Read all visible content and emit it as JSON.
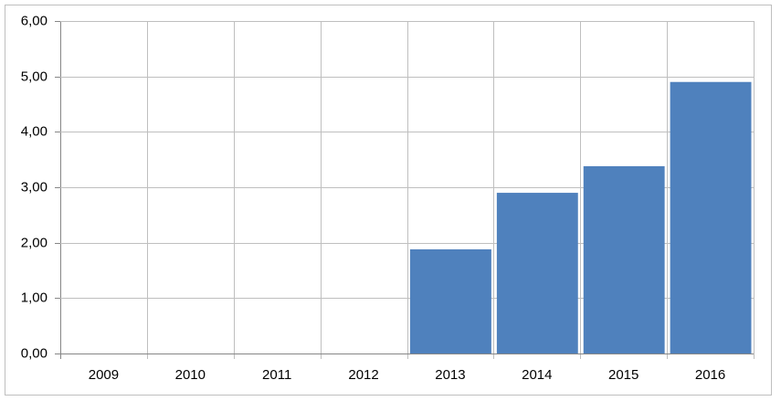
{
  "chart_data": {
    "type": "bar",
    "categories": [
      "2009",
      "2010",
      "2011",
      "2012",
      "2013",
      "2014",
      "2015",
      "2016"
    ],
    "values": [
      null,
      null,
      null,
      null,
      1.88,
      2.9,
      3.38,
      4.9
    ],
    "color": "#4f81bd",
    "ylim": [
      0,
      6
    ],
    "yticks": [
      {
        "value": 0,
        "label": "0,00"
      },
      {
        "value": 1,
        "label": "1,00"
      },
      {
        "value": 2,
        "label": "2,00"
      },
      {
        "value": 3,
        "label": "3,00"
      },
      {
        "value": 4,
        "label": "4,00"
      },
      {
        "value": 5,
        "label": "5,00"
      },
      {
        "value": 6,
        "label": "6,00"
      }
    ],
    "grid": true
  }
}
